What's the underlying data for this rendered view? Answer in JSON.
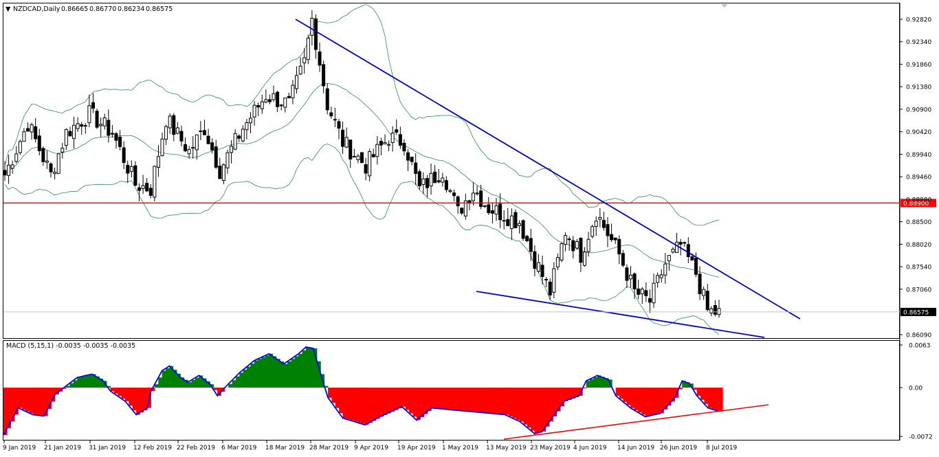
{
  "header": {
    "menu_glyph": "▼",
    "symbol": "NZDCAD,Daily",
    "ohlc": [
      "0.86665",
      "0.86770",
      "0.86234",
      "0.86575"
    ]
  },
  "macd": {
    "label": "MACD (5,15,1) -0.0035 -0.0035 -0.0035"
  },
  "chart_data": [
    {
      "type": "candlestick",
      "symbol": "NZDCAD",
      "timeframe": "Daily",
      "y_ticks": [
        "0.92820",
        "0.92340",
        "0.91860",
        "0.91380",
        "0.90900",
        "0.90420",
        "0.89940",
        "0.89460",
        "0.88980",
        "0.88500",
        "0.88020",
        "0.87540",
        "0.87060",
        "0.86090"
      ],
      "ylim": [
        0.8609,
        0.9282
      ],
      "horizontal_line": {
        "value": 0.889,
        "label": "0.88900",
        "color": "#ff0000"
      },
      "current_price": {
        "value": 0.86575,
        "label": "0.86575"
      },
      "x_ticks": [
        "9 Jan 2019",
        "21 Jan 2019",
        "31 Jan 2019",
        "12 Feb 2019",
        "22 Feb 2019",
        "6 Mar 2019",
        "18 Mar 2019",
        "28 Mar 2019",
        "9 Apr 2019",
        "19 Apr 2019",
        "1 May 2019",
        "13 May 2019",
        "23 May 2019",
        "4 Jun 2019",
        "14 Jun 2019",
        "26 Jun 2019",
        "8 Jul 2019"
      ],
      "indicators": [
        "Bollinger Bands"
      ],
      "trendlines": [
        {
          "name": "upper",
          "color": "#0000cd",
          "from": [
            0.9282
          ],
          "to": [
            0.8646
          ]
        },
        {
          "name": "lower",
          "color": "#0000cd",
          "from": [
            0.8702
          ],
          "to": [
            0.8609
          ]
        }
      ]
    },
    {
      "type": "area",
      "name": "MACD (5,15,1)",
      "y_ticks": [
        "0.0063",
        "0.00",
        "-0.0072"
      ],
      "ylim": [
        -0.0072,
        0.0063
      ],
      "positive_color": "#008000",
      "negative_color": "#ff0000",
      "line_color": "#0000ff",
      "trendline_color": "#ff0000"
    }
  ]
}
